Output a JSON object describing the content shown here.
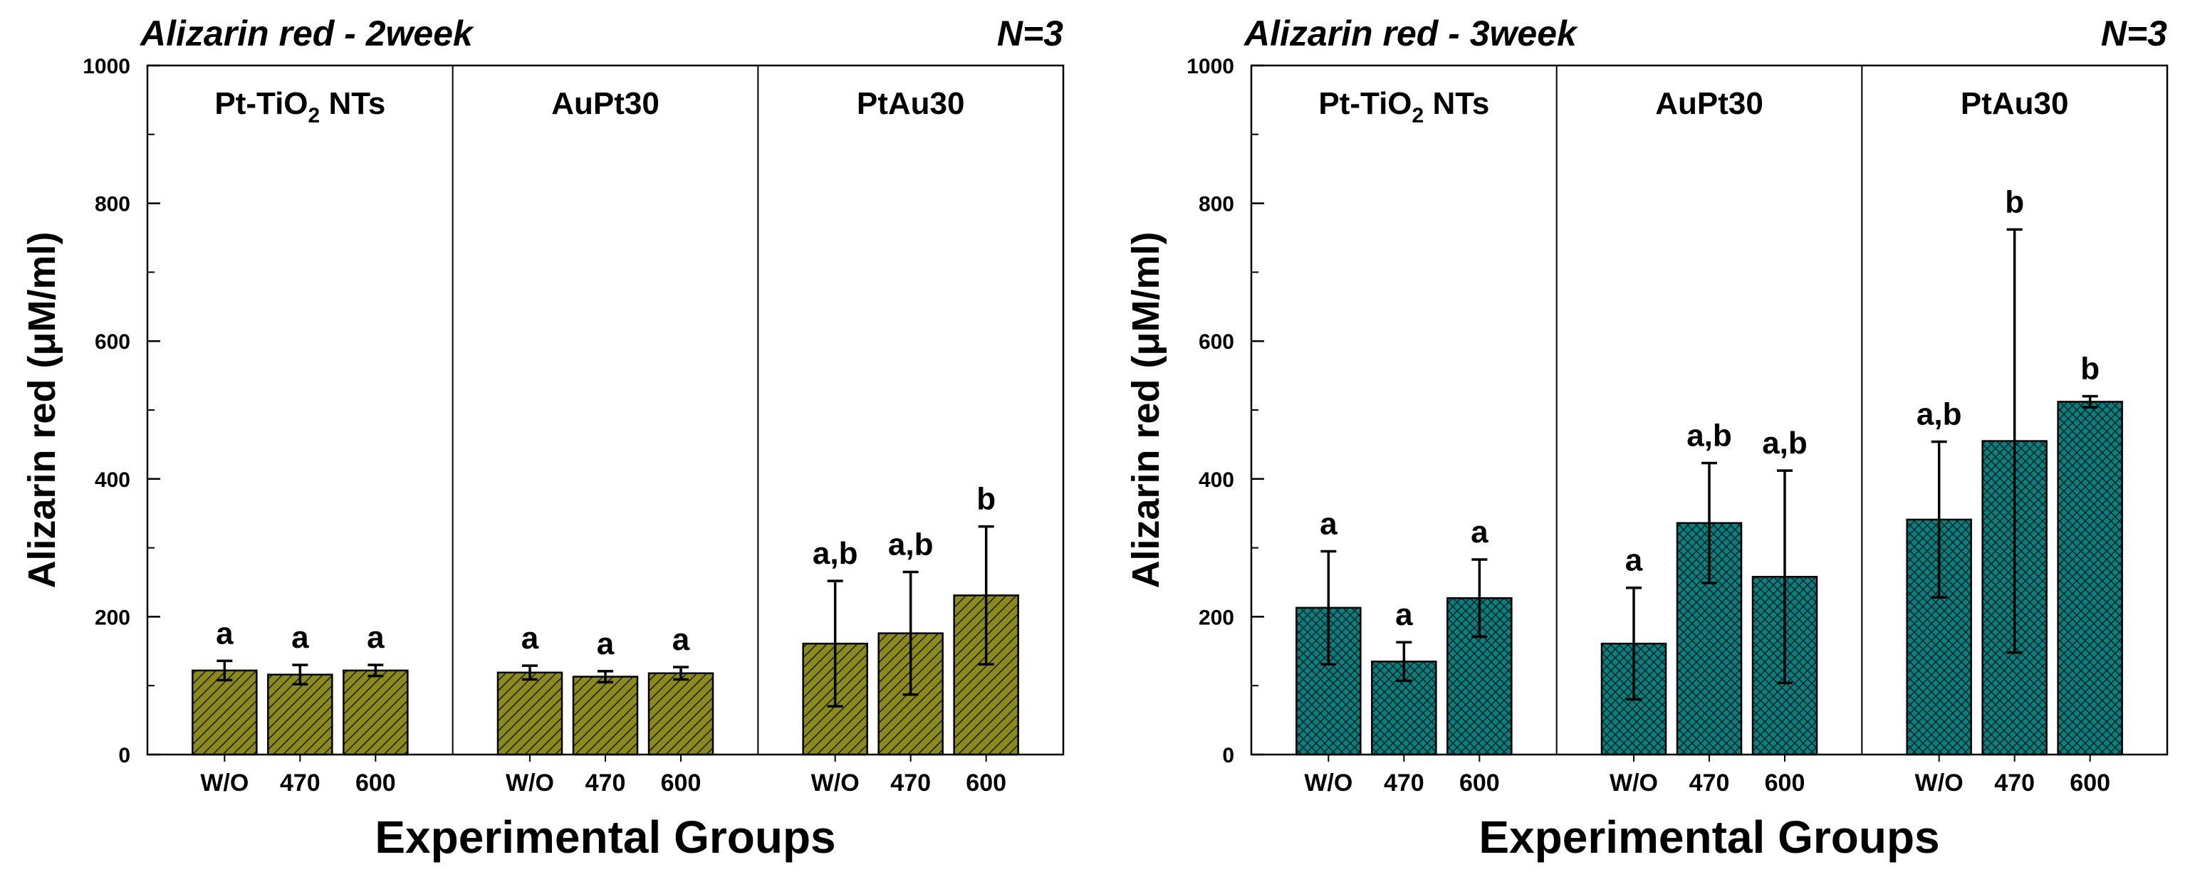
{
  "chart_data": [
    {
      "type": "bar",
      "title": "Alizarin red - 2week",
      "n_label": "N=3",
      "xlabel": "Experimental Groups",
      "ylabel": "Alizarin red (μM/ml)",
      "ylim": [
        0,
        1000
      ],
      "yticks": [
        "0",
        "200",
        "400",
        "600",
        "800",
        "1000"
      ],
      "color": "#8a8a1e",
      "pattern": "diagonal-hatch",
      "groups": [
        {
          "name": "Pt-TiO",
          "name_sub": "2",
          "name_suffix": " NTs",
          "bars": [
            {
              "label": "W/O",
              "value": 122,
              "error": 14,
              "sig": "a"
            },
            {
              "label": "470",
              "value": 116,
              "error": 14,
              "sig": "a"
            },
            {
              "label": "600",
              "value": 122,
              "error": 8,
              "sig": "a"
            }
          ]
        },
        {
          "name": "AuPt30",
          "bars": [
            {
              "label": "W/O",
              "value": 119,
              "error": 10,
              "sig": "a"
            },
            {
              "label": "470",
              "value": 113,
              "error": 8,
              "sig": "a"
            },
            {
              "label": "600",
              "value": 118,
              "error": 9,
              "sig": "a"
            }
          ]
        },
        {
          "name": "PtAu30",
          "bars": [
            {
              "label": "W/O",
              "value": 161,
              "error": 91,
              "sig": "a,b"
            },
            {
              "label": "470",
              "value": 176,
              "error": 89,
              "sig": "a,b"
            },
            {
              "label": "600",
              "value": 231,
              "error": 100,
              "sig": "b"
            }
          ]
        }
      ]
    },
    {
      "type": "bar",
      "title": "Alizarin red - 3week",
      "n_label": "N=3",
      "xlabel": "Experimental Groups",
      "ylabel": "Alizarin red (μM/ml)",
      "ylim": [
        0,
        1000
      ],
      "yticks": [
        "0",
        "200",
        "400",
        "600",
        "800",
        "1000"
      ],
      "color": "#0d7f7f",
      "pattern": "cross-hatch",
      "groups": [
        {
          "name": "Pt-TiO",
          "name_sub": "2",
          "name_suffix": " NTs",
          "bars": [
            {
              "label": "W/O",
              "value": 213,
              "error": 82,
              "sig": "a"
            },
            {
              "label": "470",
              "value": 135,
              "error": 28,
              "sig": "a"
            },
            {
              "label": "600",
              "value": 227,
              "error": 56,
              "sig": "a"
            }
          ]
        },
        {
          "name": "AuPt30",
          "bars": [
            {
              "label": "W/O",
              "value": 161,
              "error": 81,
              "sig": "a"
            },
            {
              "label": "470",
              "value": 336,
              "error": 87,
              "sig": "a,b"
            },
            {
              "label": "600",
              "value": 258,
              "error": 154,
              "sig": "a,b"
            }
          ]
        },
        {
          "name": "PtAu30",
          "bars": [
            {
              "label": "W/O",
              "value": 341,
              "error": 113,
              "sig": "a,b"
            },
            {
              "label": "470",
              "value": 455,
              "error": 307,
              "sig": "b"
            },
            {
              "label": "600",
              "value": 512,
              "error": 8,
              "sig": "b"
            }
          ]
        }
      ]
    }
  ]
}
